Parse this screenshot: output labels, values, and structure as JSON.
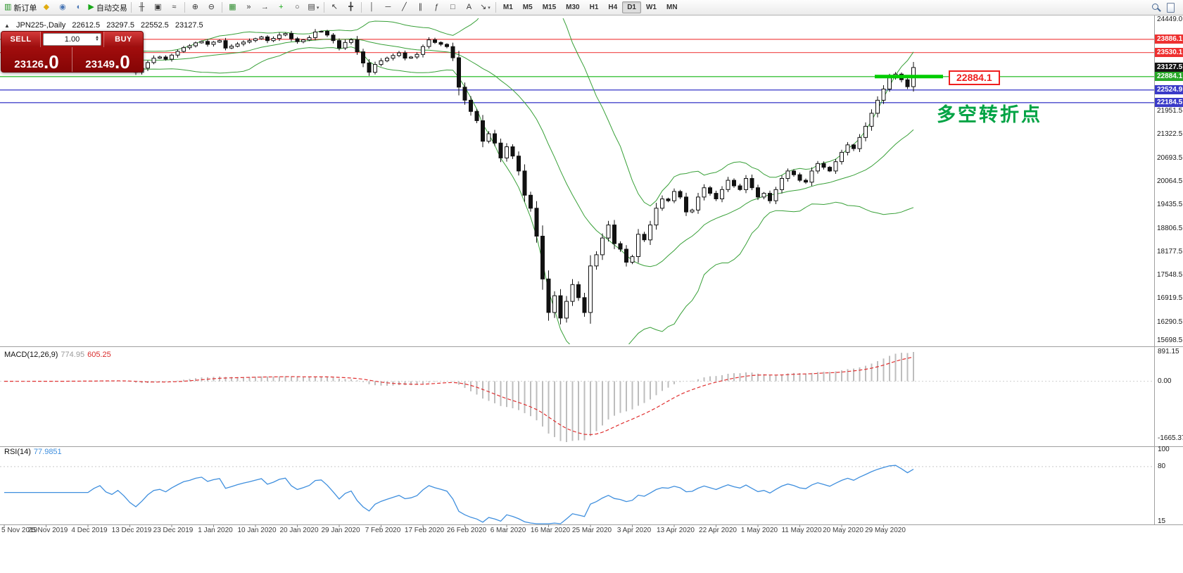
{
  "toolbar": {
    "items": [
      {
        "name": "new-order",
        "glyph": "▥",
        "color": "#1f8f1f",
        "label": "新订单"
      },
      {
        "name": "favorites",
        "glyph": "◆",
        "color": "#e0ac10"
      },
      {
        "name": "profiles",
        "glyph": "◉",
        "color": "#4a77b5"
      },
      {
        "name": "market-watch",
        "glyph": "◐",
        "color": "#4a77b5"
      },
      {
        "name": "auto-trading",
        "glyph": "▶",
        "color": "#18a818",
        "label": "自动交易"
      },
      {
        "divider": true
      },
      {
        "name": "bar-chart-type",
        "glyph": "╫",
        "color": "#3a3a3a"
      },
      {
        "name": "candle-chart-type",
        "glyph": "▣",
        "color": "#3a3a3a"
      },
      {
        "name": "line-chart-type",
        "glyph": "≈",
        "color": "#3a3a3a"
      },
      {
        "divider": true
      },
      {
        "name": "zoom-in",
        "glyph": "⊕",
        "color": "#3a3a3a"
      },
      {
        "name": "zoom-out",
        "glyph": "⊖",
        "color": "#3a3a3a"
      },
      {
        "divider": true
      },
      {
        "name": "tile-windows",
        "glyph": "▦",
        "color": "#2c8c2c"
      },
      {
        "name": "auto-scroll",
        "glyph": "»",
        "color": "#3a3a3a"
      },
      {
        "name": "chart-shift",
        "glyph": "→",
        "color": "#3a3a3a"
      },
      {
        "name": "indicators",
        "glyph": "+",
        "color": "#18a818"
      },
      {
        "name": "period-selector",
        "glyph": "○",
        "color": "#3a3a3a"
      },
      {
        "name": "templates",
        "glyph": "▤",
        "color": "#3a3a3a",
        "caret": true
      },
      {
        "divider": true
      },
      {
        "name": "cursor",
        "glyph": "↖",
        "color": "#3a3a3a"
      },
      {
        "name": "crosshair",
        "glyph": "╋",
        "color": "#3a3a3a"
      },
      {
        "divider": true
      },
      {
        "name": "vertical-line-tool",
        "glyph": "│",
        "color": "#3a3a3a"
      },
      {
        "name": "horizontal-line-tool",
        "glyph": "─",
        "color": "#3a3a3a"
      },
      {
        "name": "trendline-tool",
        "glyph": "╱",
        "color": "#3a3a3a"
      },
      {
        "name": "channel-tool",
        "glyph": "∥",
        "color": "#3a3a3a"
      },
      {
        "name": "fibonacci-tool",
        "glyph": "ƒ",
        "color": "#3a3a3a"
      },
      {
        "name": "shapes-tool",
        "glyph": "□",
        "color": "#3a3a3a"
      },
      {
        "name": "text-tool",
        "glyph": "A",
        "color": "#3a3a3a"
      },
      {
        "name": "arrows-tool",
        "glyph": "↘",
        "color": "#3a3a3a",
        "caret": true
      },
      {
        "divider": true
      }
    ],
    "timeframes": [
      "M1",
      "M5",
      "M15",
      "M30",
      "H1",
      "H4",
      "D1",
      "W1",
      "MN"
    ],
    "active_timeframe": "D1"
  },
  "chart_header": {
    "symbol": "JPN225-,Daily",
    "open": "22612.5",
    "high": "23297.5",
    "low": "22552.5",
    "close": "23127.5"
  },
  "trade_panel": {
    "sell_label": "SELL",
    "buy_label": "BUY",
    "volume": "1.00",
    "sell_price_small": "23126",
    "sell_price_big": ".0",
    "buy_price_small": "23149",
    "buy_price_big": ".0"
  },
  "annotations": {
    "callout": "22884.1",
    "note": "多空转折点"
  },
  "price_axis": {
    "edge_top": {
      "label": "24449.0",
      "price": 24449.0
    },
    "edge_bottom": {
      "label": "15698.5",
      "price": 15698.5
    },
    "ticks": [
      {
        "label": "21951.5",
        "price": 21951.5
      },
      {
        "label": "21322.5",
        "price": 21322.5
      },
      {
        "label": "20693.5",
        "price": 20693.5
      },
      {
        "label": "20064.5",
        "price": 20064.5
      },
      {
        "label": "19435.5",
        "price": 19435.5
      },
      {
        "label": "18806.5",
        "price": 18806.5
      },
      {
        "label": "18177.5",
        "price": 18177.5
      },
      {
        "label": "17548.5",
        "price": 17548.5
      },
      {
        "label": "16919.5",
        "price": 16919.5
      },
      {
        "label": "16290.5",
        "price": 16290.5
      }
    ],
    "tags": [
      {
        "label": "23886.1",
        "price": 23886.1,
        "bg": "#ee3030"
      },
      {
        "label": "23530.1",
        "price": 23530.1,
        "bg": "#ee3030"
      },
      {
        "label": "23127.5",
        "price": 23127.5,
        "bg": "#141414"
      },
      {
        "label": "22884.1",
        "price": 22884.1,
        "bg": "#28a828"
      },
      {
        "label": "22524.9",
        "price": 22524.9,
        "bg": "#3a3ac8"
      },
      {
        "label": "22184.5",
        "price": 22184.5,
        "bg": "#3a3ac8"
      }
    ]
  },
  "macd_panel": {
    "label": "MACD(12,26,9)",
    "value1": "774.95",
    "value2": "605.25",
    "axis_max": "891.15",
    "axis_zero": "0.00",
    "axis_min": "-1665.37"
  },
  "rsi_panel": {
    "label": "RSI(14)",
    "value": "77.9851",
    "axis_max": "100",
    "axis_level": "80",
    "axis_min": "15"
  },
  "chart_data": [
    {
      "type": "candlestick",
      "title": "JPN225- Daily",
      "ylim": [
        15698.5,
        24449.0
      ],
      "first_candle_x": 6,
      "candle_spacing_px": 8.5,
      "x_labels": [
        "5 Nov 2019",
        "25 Nov 2019",
        "4 Dec 2019",
        "13 Dec 2019",
        "23 Dec 2019",
        "1 Jan 2020",
        "10 Jan 2020",
        "20 Jan 2020",
        "29 Jan 2020",
        "7 Feb 2020",
        "17 Feb 2020",
        "26 Feb 2020",
        "6 Mar 2020",
        "16 Mar 2020",
        "25 Mar 2020",
        "3 Apr 2020",
        "13 Apr 2020",
        "22 Apr 2020",
        "1 May 2020",
        "11 May 2020",
        "20 May 2020",
        "29 May 2020"
      ],
      "first_open": 23320,
      "closes": [
        23350,
        23280,
        23330,
        23390,
        23340,
        23420,
        23380,
        23300,
        23270,
        23340,
        23410,
        23450,
        23370,
        23310,
        23360,
        23440,
        23500,
        23390,
        23340,
        23420,
        23310,
        23140,
        23000,
        23110,
        23260,
        23380,
        23410,
        23350,
        23460,
        23560,
        23660,
        23710,
        23790,
        23830,
        23750,
        23810,
        23850,
        23650,
        23700,
        23760,
        23810,
        23850,
        23900,
        23950,
        23850,
        23910,
        24000,
        24040,
        23900,
        23820,
        23870,
        23930,
        24080,
        24100,
        24000,
        23850,
        23650,
        23800,
        23870,
        23550,
        23250,
        23000,
        23210,
        23310,
        23380,
        23450,
        23520,
        23380,
        23410,
        23480,
        23690,
        23870,
        23800,
        23750,
        23690,
        23390,
        22600,
        22250,
        21950,
        21700,
        21150,
        21350,
        21100,
        20700,
        21000,
        20750,
        20350,
        19700,
        19350,
        18600,
        17450,
        16550,
        17000,
        16400,
        16850,
        17300,
        16950,
        16550,
        17800,
        18100,
        18550,
        18900,
        18400,
        18250,
        17900,
        18050,
        18650,
        18500,
        18900,
        19350,
        19600,
        19550,
        19800,
        19650,
        19250,
        19300,
        19650,
        19900,
        19750,
        19600,
        19850,
        20100,
        19950,
        19850,
        20150,
        19900,
        19650,
        19750,
        19550,
        19850,
        20150,
        20350,
        20250,
        20100,
        20050,
        20350,
        20550,
        20450,
        20350,
        20600,
        20850,
        21050,
        20950,
        21250,
        21550,
        21900,
        22250,
        22550,
        22850,
        22950,
        22800,
        22612.5,
        23127.5
      ],
      "last_price": 23127.5,
      "overlays": {
        "bollinger": {
          "period": 20,
          "deviation": 2,
          "color": "#38a038"
        },
        "hlines": [
          {
            "price": 23886.1,
            "color": "#f25b5b"
          },
          {
            "price": 23530.1,
            "color": "#f25b5b"
          },
          {
            "price": 22884.1,
            "color": "#3cc23c"
          },
          {
            "price": 22524.9,
            "color": "#4646cc"
          },
          {
            "price": 22184.5,
            "color": "#4646cc"
          }
        ],
        "highlight_segment": {
          "price": 22884.1,
          "x_from": 1243,
          "x_to": 1340,
          "color": "#00cc00",
          "width": 5
        }
      }
    },
    {
      "type": "bar",
      "name": "MACD",
      "fast": 12,
      "slow": 26,
      "signal_period": 9,
      "display_values": [
        774.95,
        605.25
      ],
      "axis": {
        "max": 891.15,
        "zero": 0.0,
        "min": -1665.37
      },
      "histogram_color": "#bdbdbd",
      "signal_color": "#e03030"
    },
    {
      "type": "line",
      "name": "RSI",
      "period": 14,
      "current": 77.9851,
      "range_shown": [
        15,
        100
      ],
      "level": 80,
      "color": "#3f8fde"
    }
  ]
}
